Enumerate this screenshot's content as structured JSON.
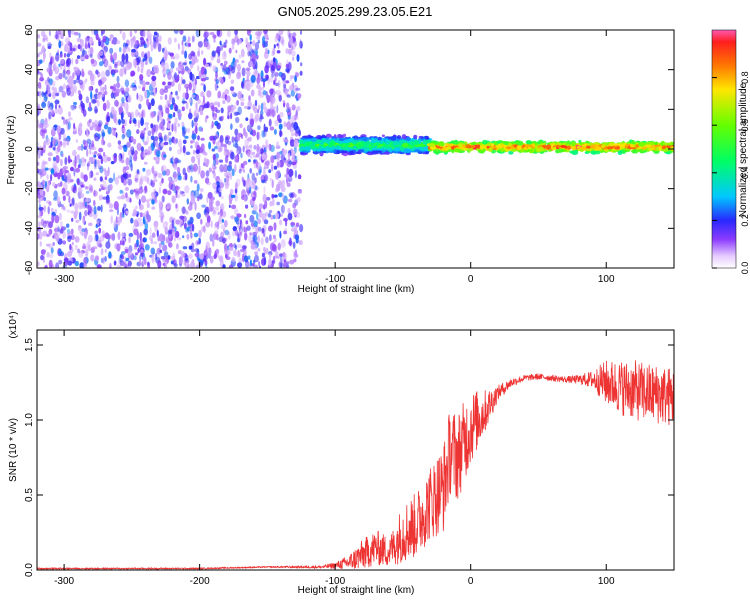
{
  "title": "GN05.2025.299.23.05.E21",
  "colors": {
    "spectrogram_noise": "#8a3cf0",
    "spectrogram_core": "#ff2a2a",
    "snr_line": "#ee3333"
  },
  "chart_data": [
    {
      "type": "heatmap",
      "title": "GN05.2025.299.23.05.E21",
      "xlabel": "Height of straight line (km)",
      "ylabel": "Frequency (Hz)",
      "xlim": [
        -320,
        150
      ],
      "ylim": [
        -60,
        60
      ],
      "xticks": [
        -300,
        -200,
        -100,
        0,
        100
      ],
      "yticks": [
        60,
        40,
        20,
        0,
        -20,
        -40,
        -60
      ],
      "ytick_labels": [
        "60",
        "40",
        "20",
        "0",
        "-20",
        "-40",
        "-60"
      ],
      "description_of_signal": [
        {
          "x_range": [
            -320,
            -125
          ],
          "frequency_range": [
            -60,
            60
          ],
          "normalized_amplitude": [
            0.0,
            0.2
          ]
        },
        {
          "x_range": [
            -125,
            -30
          ],
          "frequency_center": 2,
          "frequency_halfwidth": 5,
          "normalized_amplitude": [
            0.1,
            0.6
          ]
        },
        {
          "x_range": [
            -30,
            150
          ],
          "frequency_center": 1,
          "frequency_halfwidth": 3,
          "normalized_amplitude": [
            0.4,
            1.0
          ]
        }
      ],
      "colorbar": {
        "label": "Normalized spectral amplitude",
        "range": [
          0.0,
          1.0
        ],
        "ticks": [
          0.0,
          0.2,
          0.4,
          0.6,
          0.8
        ],
        "tick_labels": [
          "0.0",
          "0.2",
          "0.4",
          "0.6",
          "0.8"
        ]
      }
    },
    {
      "type": "line",
      "xlabel": "Height of straight line (km)",
      "ylabel": "SNR (10 * v/v)",
      "y_multiplier_label": "(x10⁴)",
      "xlim": [
        -320,
        150
      ],
      "ylim": [
        0,
        1.6
      ],
      "xticks": [
        -300,
        -200,
        -100,
        0,
        100
      ],
      "yticks": [
        0.0,
        0.5,
        1.0,
        1.5
      ],
      "ytick_labels": [
        "0.0",
        "0.5",
        "1.0",
        "1.5"
      ],
      "series": [
        {
          "x": [
            -320,
            -250,
            -200,
            -150,
            -110,
            -100,
            -90,
            -80,
            -70,
            -60,
            -50,
            -40,
            -30,
            -20,
            -15,
            -10,
            0,
            10,
            20,
            30,
            40,
            50,
            60,
            70,
            80,
            90,
            100,
            110,
            120,
            130,
            140,
            150
          ],
          "values": [
            0.01,
            0.01,
            0.01,
            0.02,
            0.02,
            0.03,
            0.05,
            0.1,
            0.15,
            0.12,
            0.25,
            0.3,
            0.45,
            0.55,
            0.8,
            0.75,
            0.95,
            1.05,
            1.18,
            1.25,
            1.28,
            1.29,
            1.28,
            1.27,
            1.27,
            1.27,
            1.25,
            1.22,
            1.2,
            1.18,
            1.17,
            1.15
          ],
          "noise_amplitude": [
            0.005,
            0.005,
            0.005,
            0.005,
            0.01,
            0.02,
            0.05,
            0.1,
            0.12,
            0.1,
            0.2,
            0.22,
            0.25,
            0.3,
            0.3,
            0.3,
            0.25,
            0.15,
            0.05,
            0.03,
            0.02,
            0.02,
            0.02,
            0.02,
            0.03,
            0.06,
            0.15,
            0.18,
            0.2,
            0.2,
            0.2,
            0.2
          ]
        }
      ]
    }
  ]
}
